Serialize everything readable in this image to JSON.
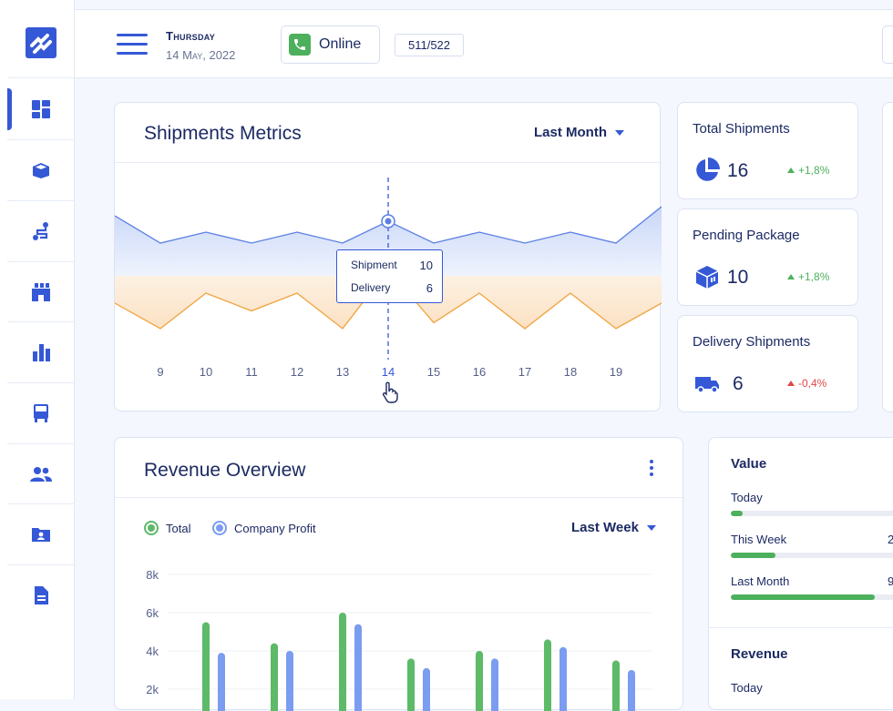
{
  "header": {
    "day": "Thursday",
    "date": "14 May, 2022",
    "status_label": "Online",
    "counter": "511/522"
  },
  "sidebar": {
    "items": [
      {
        "icon": "dashboard-icon",
        "active": true
      },
      {
        "icon": "package-icon",
        "active": false
      },
      {
        "icon": "route-icon",
        "active": false
      },
      {
        "icon": "warehouse-icon",
        "active": false
      },
      {
        "icon": "bar-chart-icon",
        "active": false
      },
      {
        "icon": "truck-icon",
        "active": false
      },
      {
        "icon": "users-icon",
        "active": false
      },
      {
        "icon": "contacts-folder-icon",
        "active": false
      },
      {
        "icon": "document-icon",
        "active": false
      }
    ]
  },
  "metrics": {
    "title": "Shipments Metrics",
    "period": "Last Month",
    "tooltip": {
      "shipment_label": "Shipment",
      "shipment_value": "10",
      "delivery_label": "Delivery",
      "delivery_value": "6"
    }
  },
  "stats": [
    {
      "title": "Total Shipments",
      "value": "16",
      "change": "+1,8%",
      "direction": "up",
      "color": "#4cb05c"
    },
    {
      "title": "Pending Package",
      "value": "10",
      "change": "+1,8%",
      "direction": "up",
      "color": "#4cb05c"
    },
    {
      "title": "Delivery Shipments",
      "value": "6",
      "change": "-0,4%",
      "direction": "up",
      "color": "#e04848"
    }
  ],
  "revenue": {
    "title": "Revenue Overview",
    "period": "Last Week",
    "legend_total": "Total",
    "legend_profit": "Company Profit"
  },
  "value_panel": {
    "heading": "Value",
    "rows": [
      {
        "label": "Today",
        "value": "",
        "progress": 0.07
      },
      {
        "label": "This Week",
        "value": "2",
        "progress": 0.26
      },
      {
        "label": "Last Month",
        "value": "9",
        "progress": 0.83
      }
    ],
    "revenue_heading": "Revenue",
    "revenue_row": "Today"
  },
  "chart_data": [
    {
      "type": "area",
      "x": [
        9,
        10,
        11,
        12,
        13,
        14,
        15,
        16,
        17,
        18,
        19
      ],
      "highlighted_x": 14,
      "series": [
        {
          "name": "Shipment",
          "values": [
            6,
            8,
            6,
            8,
            6,
            10,
            6,
            8,
            6,
            8,
            6
          ]
        },
        {
          "name": "Delivery",
          "values": [
            -4,
            2,
            -1,
            2,
            -4,
            6,
            -3,
            2,
            -4,
            2,
            -4
          ]
        }
      ],
      "colors": [
        "#5b7fe3",
        "#f0a33e"
      ]
    },
    {
      "type": "bar",
      "yticks": [
        "8k",
        "6k",
        "4k",
        "2k"
      ],
      "ylim": [
        0,
        8000
      ],
      "series": [
        {
          "name": "Total",
          "color": "#5dba68",
          "values": [
            5500,
            4400,
            6000,
            3600,
            4000,
            4600,
            3500
          ]
        },
        {
          "name": "Company Profit",
          "color": "#7b9cf0",
          "values": [
            3900,
            4000,
            5400,
            3100,
            3600,
            4200,
            3000
          ]
        }
      ]
    }
  ]
}
